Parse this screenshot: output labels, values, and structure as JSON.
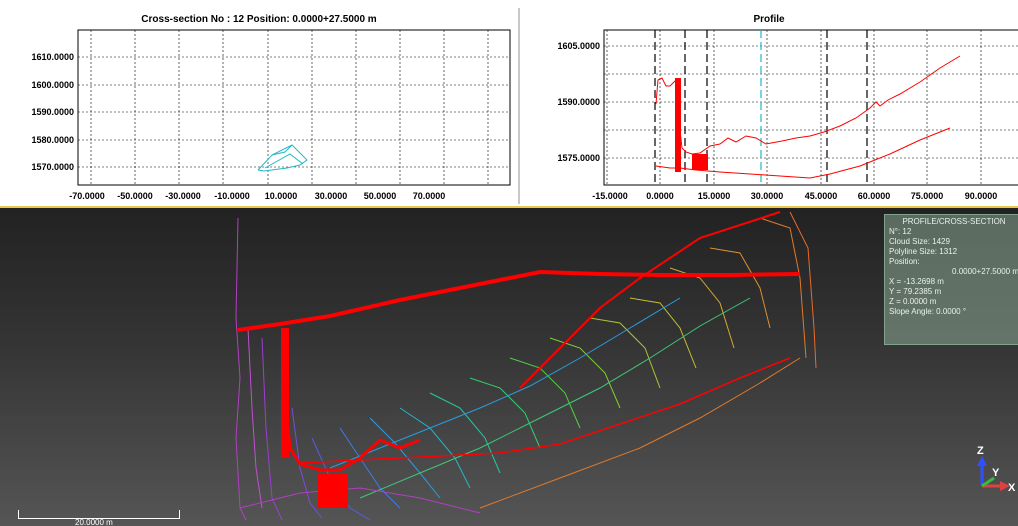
{
  "cross_section": {
    "title": "Cross-section No : 12   Position: 0.0000+27.5000  m",
    "y_ticks": [
      "1610.0000",
      "1600.0000",
      "1590.0000",
      "1580.0000",
      "1570.0000"
    ],
    "x_ticks": [
      "-70.0000",
      "-50.0000",
      "-30.0000",
      "-10.0000",
      "10.0000",
      "30.0000",
      "50.0000",
      "70.0000"
    ]
  },
  "profile": {
    "title": "Profile",
    "y_ticks": [
      "1605.0000",
      "1590.0000",
      "1575.0000"
    ],
    "x_ticks": [
      "-15.0000",
      "0.0000",
      "15.0000",
      "30.0000",
      "45.0000",
      "60.0000",
      "75.0000",
      "90.0000"
    ]
  },
  "info_panel": {
    "header": "PROFILE/CROSS-SECTION",
    "number": "N°: 12",
    "cloud_size": "Cloud Size: 1429",
    "polyline_size": "Polyline Size: 1312",
    "position_label": "Position:",
    "position_value": "0.0000+27.5000 m",
    "x": "X = -13.2698 m",
    "y": "Y = 79.2385 m",
    "z": "Z = 0.0000 m",
    "slope": "Slope Angle: 0.0000 °"
  },
  "scale_bar": {
    "label": "20.0000 m"
  },
  "axes_gizmo": {
    "z": "Z",
    "y": "Y",
    "x": "X"
  },
  "colors": {
    "section_line": "#ff0000",
    "cross_section_outline": "#22b8c8",
    "cursor_line": "#22b8c8",
    "view_border": "#e7c84a"
  }
}
